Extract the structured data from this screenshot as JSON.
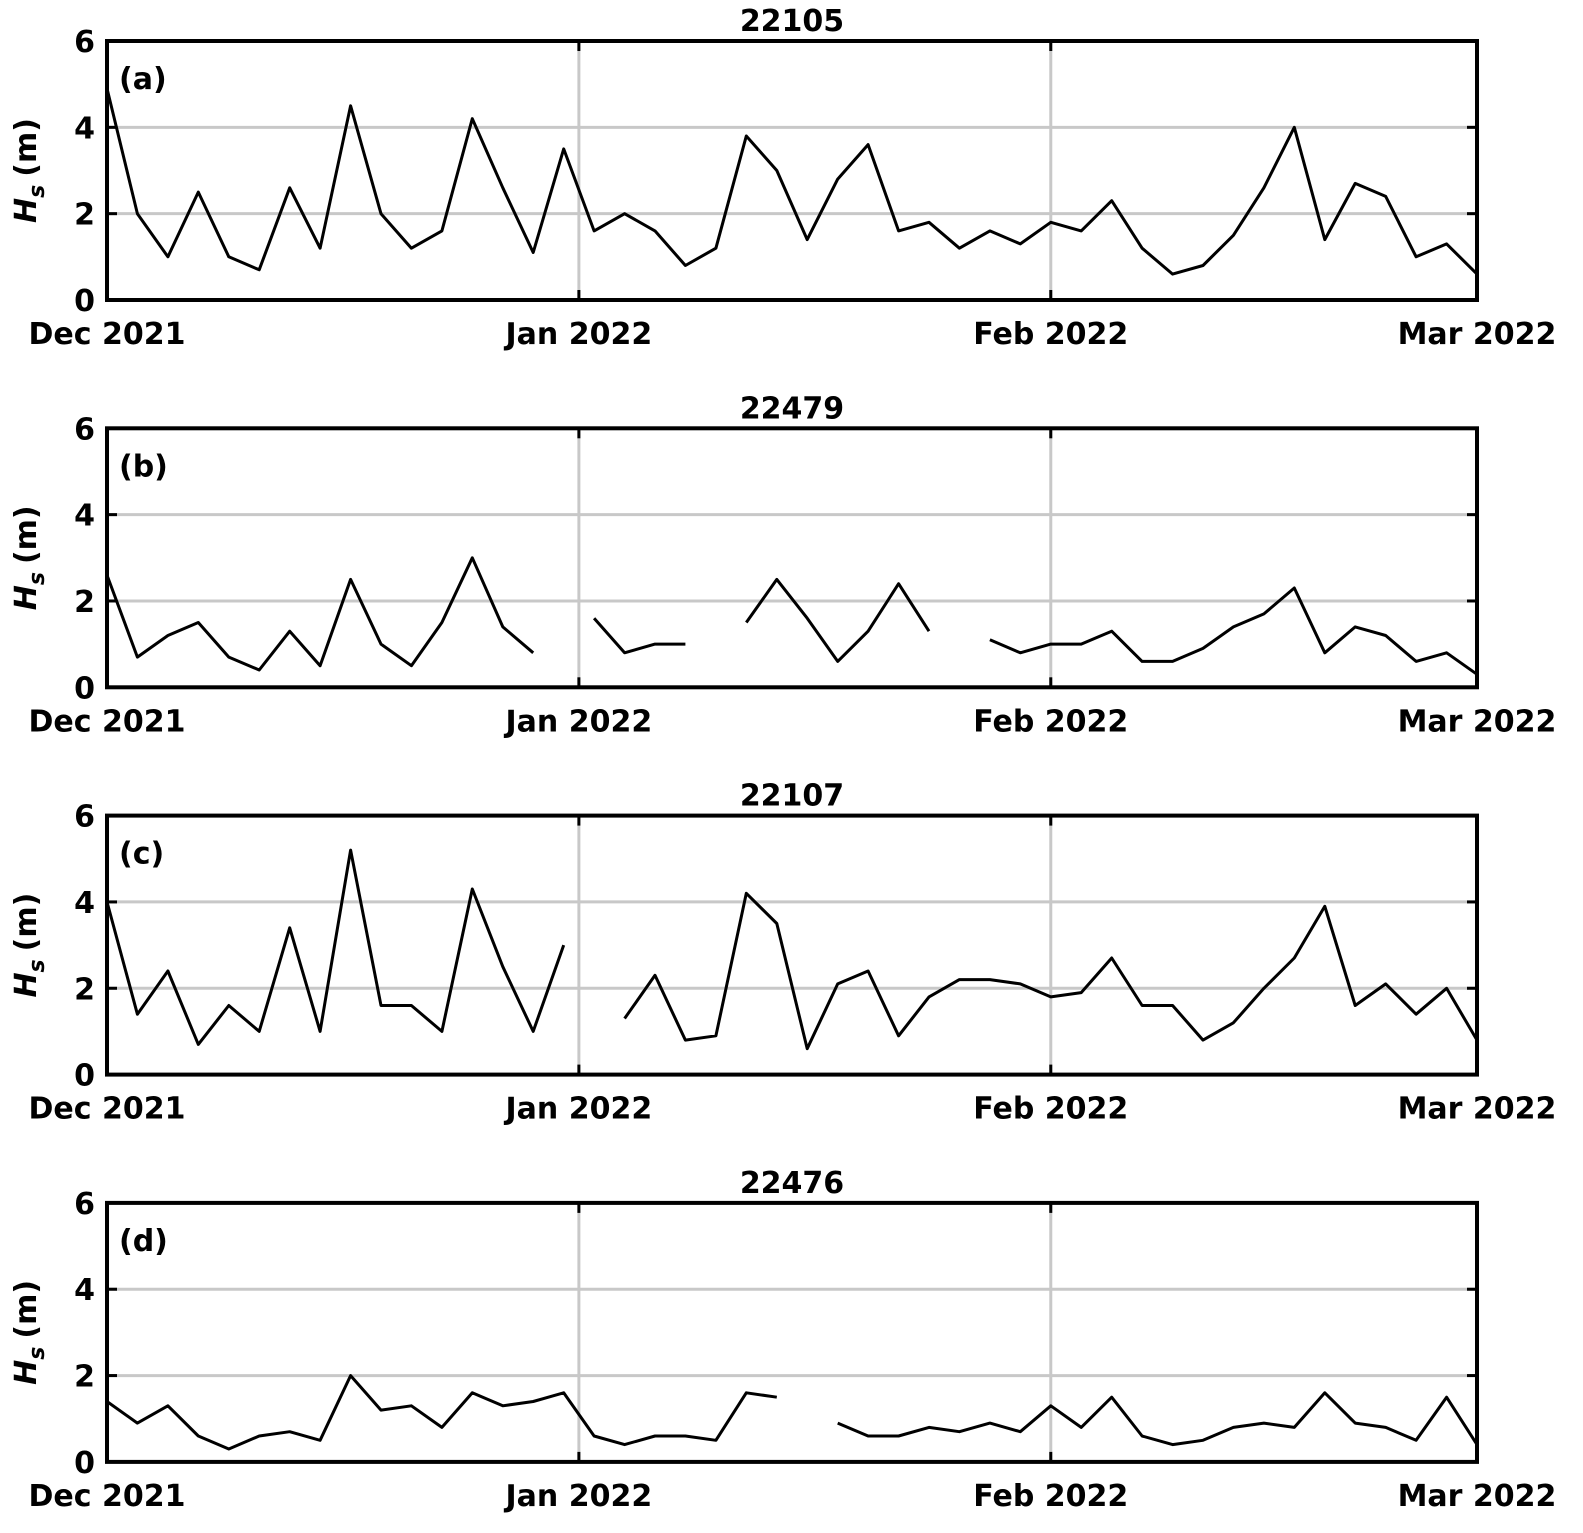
{
  "chart_data": [
    {
      "type": "line",
      "title": "22105",
      "panel_label": "(a)",
      "ylabel": {
        "symbol": "H",
        "subscript": "s",
        "unit": "(m)"
      },
      "x": [
        0,
        2,
        4,
        6,
        8,
        10,
        12,
        14,
        16,
        18,
        20,
        22,
        24,
        26,
        28,
        30,
        32,
        34,
        36,
        38,
        40,
        42,
        44,
        46,
        48,
        50,
        52,
        54,
        56,
        58,
        60,
        62,
        64,
        66,
        68,
        70,
        72,
        74,
        76,
        78,
        80,
        82,
        84,
        86,
        88,
        90
      ],
      "series": [
        {
          "name": "22105",
          "color": "#000000",
          "values": [
            4.9,
            2.0,
            1.0,
            2.5,
            1.0,
            0.7,
            2.6,
            1.2,
            4.5,
            2.0,
            1.2,
            1.6,
            4.2,
            2.6,
            1.1,
            3.5,
            1.6,
            2.0,
            1.6,
            0.8,
            1.2,
            3.8,
            3.0,
            1.4,
            2.8,
            3.6,
            1.6,
            1.8,
            1.2,
            1.6,
            1.3,
            1.8,
            1.6,
            2.3,
            1.2,
            0.6,
            0.8,
            1.5,
            2.6,
            4.0,
            1.4,
            2.7,
            2.4,
            1.0,
            1.3,
            0.6
          ]
        }
      ],
      "xlim": [
        0,
        90
      ],
      "xticks": [
        {
          "value": 0,
          "label": "Dec 2021"
        },
        {
          "value": 31,
          "label": "Jan 2022"
        },
        {
          "value": 62,
          "label": "Feb 2022"
        },
        {
          "value": 90,
          "label": "Mar 2022"
        }
      ],
      "ylim": [
        0,
        6
      ],
      "yticks": [
        0,
        2,
        4,
        6
      ],
      "grid": true
    },
    {
      "type": "line",
      "title": "22479",
      "panel_label": "(b)",
      "ylabel": {
        "symbol": "H",
        "subscript": "s",
        "unit": "(m)"
      },
      "x": [
        0,
        2,
        4,
        6,
        8,
        10,
        12,
        14,
        16,
        18,
        20,
        22,
        24,
        26,
        28,
        30,
        32,
        34,
        36,
        38,
        40,
        42,
        44,
        46,
        48,
        50,
        52,
        54,
        56,
        58,
        60,
        62,
        64,
        66,
        68,
        70,
        72,
        74,
        76,
        78,
        80,
        82,
        84,
        86,
        88,
        90
      ],
      "series": [
        {
          "name": "22479",
          "color": "#000000",
          "values": [
            2.6,
            0.7,
            1.2,
            1.5,
            0.7,
            0.4,
            1.3,
            0.5,
            2.5,
            1.0,
            0.5,
            1.5,
            3.0,
            1.4,
            0.8,
            null,
            1.6,
            0.8,
            1.0,
            1.0,
            null,
            1.5,
            2.5,
            1.6,
            0.6,
            1.3,
            2.4,
            1.3,
            null,
            1.1,
            0.8,
            1.0,
            1.0,
            1.3,
            0.6,
            0.6,
            0.9,
            1.4,
            1.7,
            2.3,
            0.8,
            1.4,
            1.2,
            0.6,
            0.8,
            0.3
          ]
        }
      ],
      "xlim": [
        0,
        90
      ],
      "xticks": [
        {
          "value": 0,
          "label": "Dec 2021"
        },
        {
          "value": 31,
          "label": "Jan 2022"
        },
        {
          "value": 62,
          "label": "Feb 2022"
        },
        {
          "value": 90,
          "label": "Mar 2022"
        }
      ],
      "ylim": [
        0,
        6
      ],
      "yticks": [
        0,
        2,
        4,
        6
      ],
      "grid": true
    },
    {
      "type": "line",
      "title": "22107",
      "panel_label": "(c)",
      "ylabel": {
        "symbol": "H",
        "subscript": "s",
        "unit": "(m)"
      },
      "x": [
        0,
        2,
        4,
        6,
        8,
        10,
        12,
        14,
        16,
        18,
        20,
        22,
        24,
        26,
        28,
        30,
        32,
        34,
        36,
        38,
        40,
        42,
        44,
        46,
        48,
        50,
        52,
        54,
        56,
        58,
        60,
        62,
        64,
        66,
        68,
        70,
        72,
        74,
        76,
        78,
        80,
        82,
        84,
        86,
        88,
        90
      ],
      "series": [
        {
          "name": "22107",
          "color": "#000000",
          "values": [
            4.0,
            1.4,
            2.4,
            0.7,
            1.6,
            1.0,
            3.4,
            1.0,
            5.2,
            1.6,
            1.6,
            1.0,
            4.3,
            2.5,
            1.0,
            3.0,
            null,
            1.3,
            2.3,
            0.8,
            0.9,
            4.2,
            3.5,
            0.6,
            2.1,
            2.4,
            0.9,
            1.8,
            2.2,
            2.2,
            2.1,
            1.8,
            1.9,
            2.7,
            1.6,
            1.6,
            0.8,
            1.2,
            2.0,
            2.7,
            3.9,
            1.6,
            2.1,
            1.4,
            2.0,
            0.8
          ]
        }
      ],
      "xlim": [
        0,
        90
      ],
      "xticks": [
        {
          "value": 0,
          "label": "Dec 2021"
        },
        {
          "value": 31,
          "label": "Jan 2022"
        },
        {
          "value": 62,
          "label": "Feb 2022"
        },
        {
          "value": 90,
          "label": "Mar 2022"
        }
      ],
      "ylim": [
        0,
        6
      ],
      "yticks": [
        0,
        2,
        4,
        6
      ],
      "grid": true
    },
    {
      "type": "line",
      "title": "22476",
      "panel_label": "(d)",
      "ylabel": {
        "symbol": "H",
        "subscript": "s",
        "unit": "(m)"
      },
      "x": [
        0,
        2,
        4,
        6,
        8,
        10,
        12,
        14,
        16,
        18,
        20,
        22,
        24,
        26,
        28,
        30,
        32,
        34,
        36,
        38,
        40,
        42,
        44,
        46,
        48,
        50,
        52,
        54,
        56,
        58,
        60,
        62,
        64,
        66,
        68,
        70,
        72,
        74,
        76,
        78,
        80,
        82,
        84,
        86,
        88,
        90
      ],
      "series": [
        {
          "name": "22476",
          "color": "#000000",
          "values": [
            1.4,
            0.9,
            1.3,
            0.6,
            0.3,
            0.6,
            0.7,
            0.5,
            2.0,
            1.2,
            1.3,
            0.8,
            1.6,
            1.3,
            1.4,
            1.6,
            0.6,
            0.4,
            0.6,
            0.6,
            0.5,
            1.6,
            1.5,
            null,
            0.9,
            0.6,
            0.6,
            0.8,
            0.7,
            0.9,
            0.7,
            1.3,
            0.8,
            1.5,
            0.6,
            0.4,
            0.5,
            0.8,
            0.9,
            0.8,
            1.6,
            0.9,
            0.8,
            0.5,
            1.5,
            0.4
          ]
        }
      ],
      "xlim": [
        0,
        90
      ],
      "xticks": [
        {
          "value": 0,
          "label": "Dec 2021"
        },
        {
          "value": 31,
          "label": "Jan 2022"
        },
        {
          "value": 62,
          "label": "Feb 2022"
        },
        {
          "value": 90,
          "label": "Mar 2022"
        }
      ],
      "ylim": [
        0,
        6
      ],
      "yticks": [
        0,
        2,
        4,
        6
      ],
      "grid": true
    }
  ]
}
